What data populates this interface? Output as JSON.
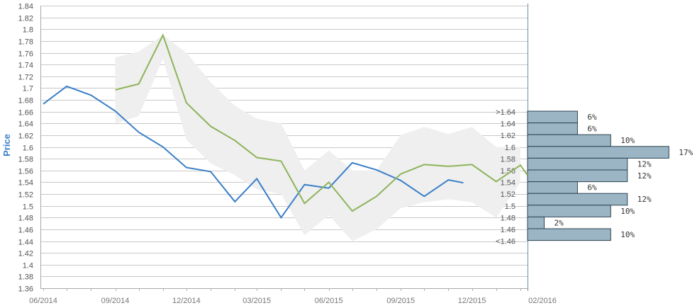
{
  "chart_data": {
    "type": "line",
    "ylabel": "Price",
    "ylim": [
      1.36,
      1.84
    ],
    "yticks": [
      "1.36",
      "1.38",
      "1.4",
      "1.42",
      "1.44",
      "1.46",
      "1.48",
      "1.5",
      "1.52",
      "1.54",
      "1.56",
      "1.58",
      "1.6",
      "1.62",
      "1.64",
      "1.66",
      "1.68",
      "1.7",
      "1.72",
      "1.74",
      "1.76",
      "1.78",
      "1.8",
      "1.82",
      "1.84"
    ],
    "x_tick_labels": [
      "06/2014",
      "09/2014",
      "12/2014",
      "03/2015",
      "06/2015",
      "09/2015",
      "12/2015",
      "02/2016"
    ],
    "series": [
      {
        "color": "#3a7fc8",
        "points": [
          [
            "2014-06",
            1.673
          ],
          [
            "2014-07",
            1.703
          ],
          [
            "2014-08",
            1.688
          ],
          [
            "2014-09",
            1.661
          ],
          [
            "2014-10",
            1.625
          ],
          [
            "2014-11",
            1.6
          ],
          [
            "2014-12",
            1.565
          ],
          [
            "2015-01",
            1.558
          ],
          [
            "2015-02",
            1.507
          ],
          [
            "2015-03",
            1.546
          ],
          [
            "2015-04",
            1.48
          ],
          [
            "2015-05",
            1.536
          ],
          [
            "2015-06",
            1.53
          ],
          [
            "2015-07",
            1.573
          ],
          [
            "2015-08",
            1.561
          ],
          [
            "2015-09",
            1.543
          ],
          [
            "2015-10",
            1.516
          ],
          [
            "2015-11",
            1.544
          ],
          [
            "2015-11-20",
            1.539
          ]
        ]
      },
      {
        "color": "#8db45a",
        "points": [
          [
            "2014-09",
            1.697
          ],
          [
            "2014-10",
            1.707
          ],
          [
            "2014-11",
            1.79
          ],
          [
            "2014-12",
            1.675
          ],
          [
            "2015-01",
            1.635
          ],
          [
            "2015-02",
            1.611
          ],
          [
            "2015-03",
            1.582
          ],
          [
            "2015-04",
            1.576
          ],
          [
            "2015-05",
            1.504
          ],
          [
            "2015-06",
            1.54
          ],
          [
            "2015-07",
            1.491
          ],
          [
            "2015-08",
            1.516
          ],
          [
            "2015-09",
            1.554
          ],
          [
            "2015-10",
            1.57
          ],
          [
            "2015-11",
            1.567
          ],
          [
            "2015-12",
            1.57
          ],
          [
            "2016-01",
            1.541
          ],
          [
            "2016-02",
            1.569
          ],
          [
            "2016-02-10",
            1.552
          ]
        ]
      }
    ],
    "band": {
      "color": "#efefef",
      "upper": [
        [
          "2014-09",
          1.752
        ],
        [
          "2014-10",
          1.762
        ],
        [
          "2014-11",
          1.79
        ],
        [
          "2014-12",
          1.76
        ],
        [
          "2015-01",
          1.71
        ],
        [
          "2015-02",
          1.67
        ],
        [
          "2015-03",
          1.648
        ],
        [
          "2015-04",
          1.64
        ],
        [
          "2015-05",
          1.56
        ],
        [
          "2015-06",
          1.594
        ],
        [
          "2015-07",
          1.56
        ],
        [
          "2015-08",
          1.56
        ],
        [
          "2015-09",
          1.62
        ],
        [
          "2015-10",
          1.634
        ],
        [
          "2015-11",
          1.622
        ],
        [
          "2015-12",
          1.634
        ],
        [
          "2016-01",
          1.6
        ],
        [
          "2016-02",
          1.6
        ]
      ],
      "lower": [
        [
          "2014-09",
          1.64
        ],
        [
          "2014-10",
          1.652
        ],
        [
          "2014-11",
          1.75
        ],
        [
          "2014-12",
          1.612
        ],
        [
          "2015-01",
          1.572
        ],
        [
          "2015-02",
          1.552
        ],
        [
          "2015-03",
          1.528
        ],
        [
          "2015-04",
          1.52
        ],
        [
          "2015-05",
          1.45
        ],
        [
          "2015-06",
          1.484
        ],
        [
          "2015-07",
          1.44
        ],
        [
          "2015-08",
          1.46
        ],
        [
          "2015-09",
          1.496
        ],
        [
          "2015-10",
          1.506
        ],
        [
          "2015-11",
          1.511
        ],
        [
          "2015-12",
          1.506
        ],
        [
          "2016-01",
          1.48
        ],
        [
          "2016-02",
          1.54
        ]
      ]
    },
    "distribution": {
      "color": "#9bb5c4",
      "bins": [
        {
          "label": ">1.64",
          "y": 1.65,
          "pct": 6,
          "pct_label": "6%"
        },
        {
          "label": "1.64",
          "y": 1.63,
          "pct": 6,
          "pct_label": "6%"
        },
        {
          "label": "1.62",
          "y": 1.61,
          "pct": 10,
          "pct_label": "10%"
        },
        {
          "label": "1.6",
          "y": 1.59,
          "pct": 17,
          "pct_label": "17%"
        },
        {
          "label": "1.58",
          "y": 1.57,
          "pct": 12,
          "pct_label": "12%"
        },
        {
          "label": "1.56",
          "y": 1.55,
          "pct": 12,
          "pct_label": "12%"
        },
        {
          "label": "1.54",
          "y": 1.53,
          "pct": 6,
          "pct_label": "6%"
        },
        {
          "label": "1.52",
          "y": 1.51,
          "pct": 12,
          "pct_label": "12%"
        },
        {
          "label": "1.5",
          "y": 1.49,
          "pct": 10,
          "pct_label": "10%"
        },
        {
          "label": "1.48",
          "y": 1.47,
          "pct": 2,
          "pct_label": "2%"
        },
        {
          "label": "1.46",
          "y": 1.45,
          "pct": 10,
          "pct_label": "10%"
        },
        {
          "label": "<1.46",
          "y": null,
          "pct": null,
          "pct_label": ""
        }
      ]
    }
  }
}
